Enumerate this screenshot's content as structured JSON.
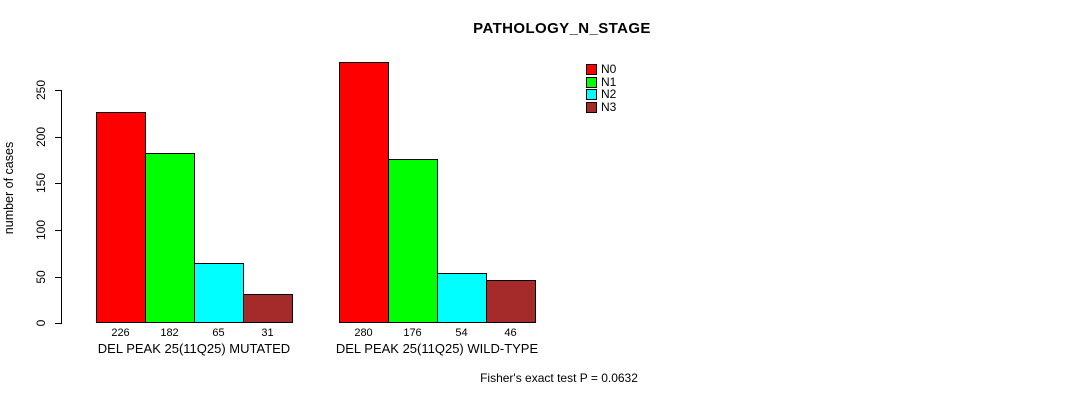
{
  "chart_data": {
    "type": "bar",
    "title": "PATHOLOGY_N_STAGE",
    "ylabel": "number of cases",
    "xlabel": "",
    "ylim": [
      0,
      250
    ],
    "yticks": [
      0,
      50,
      100,
      150,
      200,
      250
    ],
    "grid": false,
    "grouped": true,
    "categories": [
      "DEL PEAK 25(11Q25) MUTATED",
      "DEL PEAK 25(11Q25) WILD-TYPE"
    ],
    "series": [
      {
        "name": "N0",
        "color": "#FF0000",
        "values": [
          226,
          280
        ]
      },
      {
        "name": "N1",
        "color": "#00FF00",
        "values": [
          182,
          176
        ]
      },
      {
        "name": "N2",
        "color": "#00FFFF",
        "values": [
          65,
          54
        ]
      },
      {
        "name": "N3",
        "color": "#A52A2A",
        "values": [
          31,
          46
        ]
      }
    ],
    "bar_values_shown": true,
    "legend": {
      "position": "top-right",
      "entries": [
        "N0",
        "N1",
        "N2",
        "N3"
      ]
    },
    "annotation": "Fisher's exact test P = 0.0632"
  }
}
